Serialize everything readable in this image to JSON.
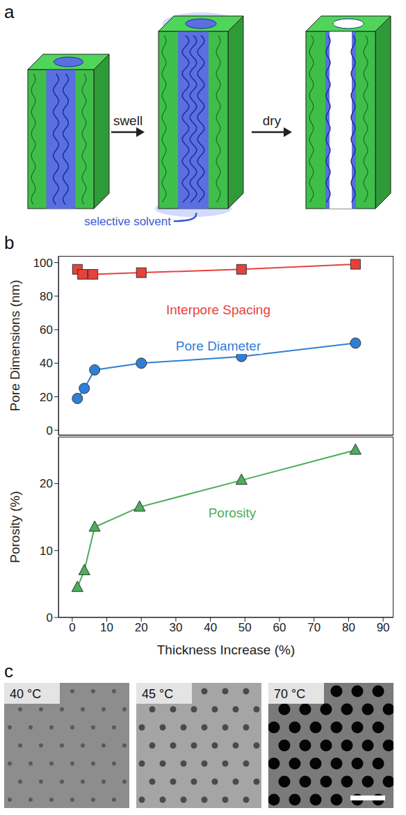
{
  "panel_labels": [
    "a",
    "b",
    "c"
  ],
  "panel_a": {
    "steps": [
      "swell",
      "dry"
    ],
    "annotation": "selective solvent"
  },
  "chart_data": [
    {
      "type": "line",
      "ylabel": "Pore Dimensions (nm)",
      "xlim": [
        -4,
        93
      ],
      "xticks": [
        0,
        10,
        20,
        30,
        40,
        50,
        60,
        70,
        80,
        90
      ],
      "ylim": [
        -3,
        104
      ],
      "yticks": [
        0,
        20,
        40,
        60,
        80,
        100
      ],
      "tick_labels": "y",
      "grid": false,
      "series": [
        {
          "name": "Interpore Spacing",
          "color": "#e8413c",
          "marker": "square",
          "line_style": "solid",
          "x": [
            1.5,
            3,
            6,
            20,
            49,
            82
          ],
          "values": [
            96,
            93,
            93,
            94,
            96,
            99
          ]
        },
        {
          "name": "Pore Diameter",
          "color": "#2f7fd6",
          "marker": "circle",
          "line_style": "solid",
          "x": [
            1.5,
            3.5,
            6.5,
            20,
            49,
            82
          ],
          "values": [
            19,
            25,
            36,
            40,
            44,
            52
          ]
        }
      ]
    },
    {
      "type": "line",
      "xlabel": "Thickness Increase (%)",
      "ylabel": "Porosity (%)",
      "xlim": [
        -4,
        93
      ],
      "xticks": [
        0,
        10,
        20,
        30,
        40,
        50,
        60,
        70,
        80,
        90
      ],
      "ylim": [
        0,
        27
      ],
      "yticks": [
        0,
        10,
        20
      ],
      "grid": false,
      "series": [
        {
          "name": "Porosity",
          "color": "#4cae5a",
          "marker": "triangle",
          "line_style": "solid",
          "x": [
            1.5,
            3.5,
            6.5,
            19.5,
            49,
            82
          ],
          "values": [
            4.5,
            7,
            13.5,
            16.5,
            20.5,
            25
          ]
        }
      ]
    }
  ],
  "panel_c": {
    "images": [
      {
        "label": "40 °C"
      },
      {
        "label": "45 °C"
      },
      {
        "label": "70 °C"
      }
    ]
  }
}
